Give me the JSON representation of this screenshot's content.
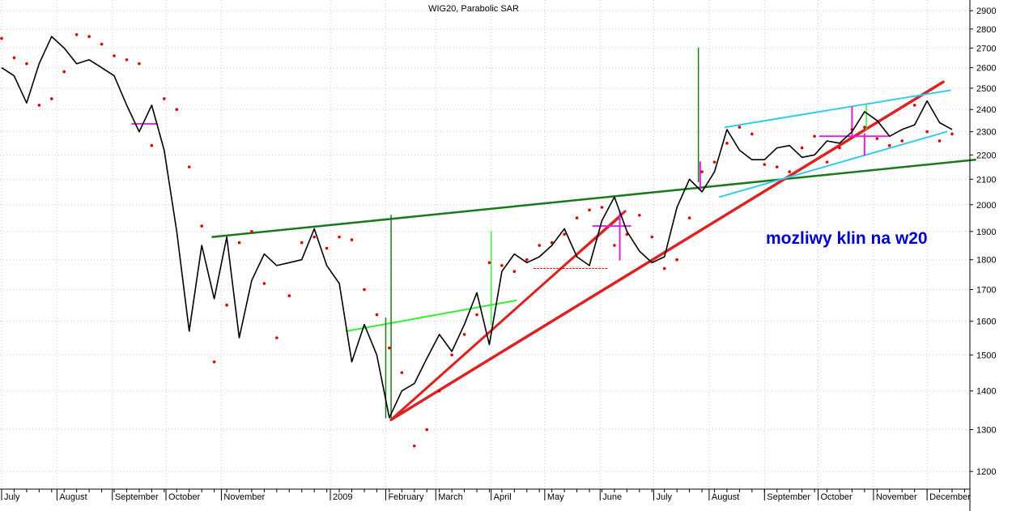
{
  "chart_data": {
    "type": "line",
    "title": "WIG20, Parabolic SAR",
    "y_scale": "log",
    "ylim": [
      1160,
      2960
    ],
    "y_ticks": [
      1200,
      1300,
      1400,
      1500,
      1600,
      1700,
      1800,
      1900,
      2000,
      2100,
      2200,
      2300,
      2400,
      2500,
      2600,
      2700,
      2800,
      2900
    ],
    "x_tick_labels": [
      "July",
      "August",
      "September",
      "October",
      "November",
      "2009",
      "February",
      "March",
      "April",
      "May",
      "June",
      "July",
      "August",
      "September",
      "October",
      "November",
      "December"
    ],
    "grid": true,
    "colors": {
      "price": "#000000",
      "sar": "#dd0000",
      "support_trend": "#dd2222",
      "long_resistance": "#1a7a1a",
      "channel": "#33ccee",
      "flag": "#33ee33",
      "marker": "#dd22dd",
      "annotation": "#0000cc"
    },
    "series": [
      {
        "name": "WIG20",
        "style": "line",
        "x": [
          "2008-07-01",
          "2008-07-08",
          "2008-07-15",
          "2008-07-22",
          "2008-07-29",
          "2008-08-05",
          "2008-08-12",
          "2008-08-19",
          "2008-08-26",
          "2008-09-02",
          "2008-09-09",
          "2008-09-16",
          "2008-09-23",
          "2008-09-30",
          "2008-10-07",
          "2008-10-14",
          "2008-10-21",
          "2008-10-28",
          "2008-11-04",
          "2008-11-11",
          "2008-11-18",
          "2008-11-25",
          "2008-12-02",
          "2008-12-09",
          "2008-12-16",
          "2008-12-23",
          "2008-12-30",
          "2009-01-06",
          "2009-01-13",
          "2009-01-20",
          "2009-01-27",
          "2009-02-03",
          "2009-02-10",
          "2009-02-17",
          "2009-02-24",
          "2009-03-03",
          "2009-03-10",
          "2009-03-17",
          "2009-03-24",
          "2009-03-31",
          "2009-04-07",
          "2009-04-14",
          "2009-04-21",
          "2009-04-28",
          "2009-05-05",
          "2009-05-12",
          "2009-05-19",
          "2009-05-26",
          "2009-06-02",
          "2009-06-09",
          "2009-06-16",
          "2009-06-23",
          "2009-06-30",
          "2009-07-07",
          "2009-07-14",
          "2009-07-21",
          "2009-07-28",
          "2009-08-04",
          "2009-08-11",
          "2009-08-18",
          "2009-08-25",
          "2009-09-01",
          "2009-09-08",
          "2009-09-15",
          "2009-09-22",
          "2009-09-29",
          "2009-10-06",
          "2009-10-13",
          "2009-10-20",
          "2009-10-27",
          "2009-11-03",
          "2009-11-10",
          "2009-11-17",
          "2009-11-24",
          "2009-12-01",
          "2009-12-08",
          "2009-12-15"
        ],
        "values": [
          2600,
          2560,
          2430,
          2620,
          2760,
          2700,
          2620,
          2640,
          2600,
          2560,
          2420,
          2300,
          2420,
          2220,
          1900,
          1570,
          1850,
          1670,
          1880,
          1550,
          1730,
          1820,
          1780,
          1790,
          1800,
          1910,
          1780,
          1720,
          1480,
          1590,
          1500,
          1330,
          1400,
          1420,
          1490,
          1560,
          1510,
          1590,
          1690,
          1530,
          1760,
          1820,
          1790,
          1810,
          1850,
          1910,
          1810,
          1780,
          1940,
          2030,
          1900,
          1830,
          1790,
          1810,
          1990,
          2100,
          2050,
          2130,
          2310,
          2220,
          2180,
          2180,
          2230,
          2240,
          2190,
          2200,
          2260,
          2250,
          2300,
          2390,
          2350,
          2280,
          2310,
          2330,
          2440,
          2340,
          2310
        ]
      },
      {
        "name": "Parabolic SAR",
        "style": "dots",
        "x": [
          "2008-07-01",
          "2008-07-08",
          "2008-07-15",
          "2008-07-22",
          "2008-07-29",
          "2008-08-05",
          "2008-08-12",
          "2008-08-19",
          "2008-08-26",
          "2008-09-02",
          "2008-09-09",
          "2008-09-16",
          "2008-09-23",
          "2008-09-30",
          "2008-10-07",
          "2008-10-14",
          "2008-10-21",
          "2008-10-28",
          "2008-11-04",
          "2008-11-11",
          "2008-11-18",
          "2008-11-25",
          "2008-12-02",
          "2008-12-09",
          "2008-12-16",
          "2008-12-23",
          "2008-12-30",
          "2009-01-06",
          "2009-01-13",
          "2009-01-20",
          "2009-01-27",
          "2009-02-03",
          "2009-02-10",
          "2009-02-17",
          "2009-02-24",
          "2009-03-03",
          "2009-03-10",
          "2009-03-17",
          "2009-03-24",
          "2009-03-31",
          "2009-04-07",
          "2009-04-14",
          "2009-04-21",
          "2009-04-28",
          "2009-05-05",
          "2009-05-12",
          "2009-05-19",
          "2009-05-26",
          "2009-06-02",
          "2009-06-09",
          "2009-06-16",
          "2009-06-23",
          "2009-06-30",
          "2009-07-07",
          "2009-07-14",
          "2009-07-21",
          "2009-07-28",
          "2009-08-04",
          "2009-08-11",
          "2009-08-18",
          "2009-08-25",
          "2009-09-01",
          "2009-09-08",
          "2009-09-15",
          "2009-09-22",
          "2009-09-29",
          "2009-10-06",
          "2009-10-13",
          "2009-10-20",
          "2009-10-27",
          "2009-11-03",
          "2009-11-10",
          "2009-11-17",
          "2009-11-24",
          "2009-12-01",
          "2009-12-08",
          "2009-12-15"
        ],
        "values": [
          2750,
          2650,
          2620,
          2420,
          2450,
          2580,
          2770,
          2760,
          2720,
          2660,
          2640,
          2620,
          2240,
          2450,
          2400,
          2150,
          1920,
          1480,
          1650,
          1860,
          1900,
          1720,
          1550,
          1680,
          1860,
          1880,
          1840,
          1880,
          1870,
          1700,
          1620,
          1520,
          1450,
          1260,
          1300,
          1400,
          1500,
          1560,
          1620,
          1790,
          1780,
          1760,
          1800,
          1850,
          1860,
          1890,
          1950,
          1980,
          1990,
          1850,
          1890,
          1960,
          1880,
          1770,
          1800,
          1950,
          2130,
          2170,
          2250,
          2320,
          2290,
          2160,
          2150,
          2130,
          2230,
          2280,
          2170,
          2230,
          2310,
          2320,
          2270,
          2240,
          2260,
          2420,
          2300,
          2260,
          2290
        ]
      }
    ],
    "annotations": [
      {
        "text": "mozliwy klin na w20"
      }
    ]
  }
}
